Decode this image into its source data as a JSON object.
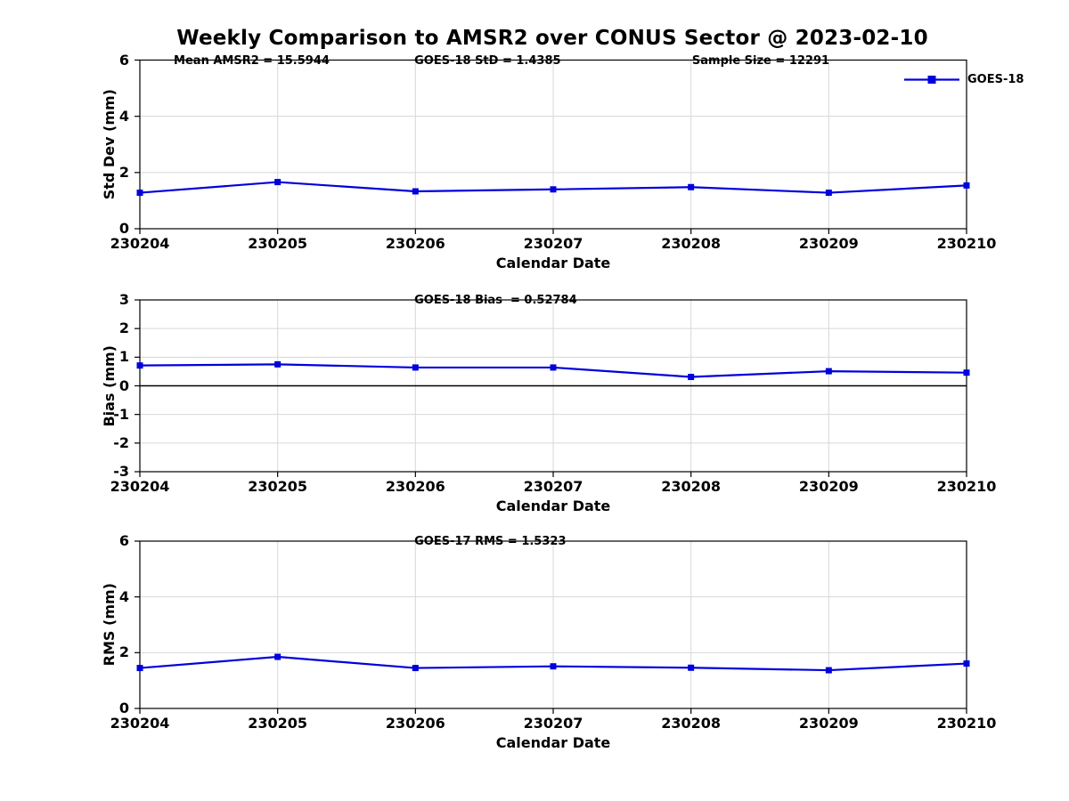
{
  "figure": {
    "title": "Weekly Comparison to AMSR2 over CONUS Sector @ 2023-02-10",
    "legend": {
      "label": "GOES-18"
    }
  },
  "colors": {
    "series": "#0000DD",
    "grid": "#D7D7D7",
    "axis": "#000000",
    "zero_line": "#000000",
    "background": "#FFFFFF"
  },
  "x_axis": {
    "label": "Calendar Date",
    "categories": [
      "230204",
      "230205",
      "230206",
      "230207",
      "230208",
      "230209",
      "230210"
    ]
  },
  "chart_data": [
    {
      "type": "line",
      "annotations": [
        "Mean AMSR2 = 15.5944",
        "GOES-18 StD = 1.4385",
        "Sample Size = 12291"
      ],
      "ylabel": "Std Dev (mm)",
      "xlabel": "Calendar Date",
      "ylim": [
        0,
        6
      ],
      "yticks": [
        0,
        2,
        4,
        6
      ],
      "grid": true,
      "legend_position": "upper right",
      "categories": [
        "230204",
        "230205",
        "230206",
        "230207",
        "230208",
        "230209",
        "230210"
      ],
      "series": [
        {
          "name": "GOES-18",
          "values": [
            1.28,
            1.66,
            1.33,
            1.4,
            1.48,
            1.28,
            1.54
          ]
        }
      ]
    },
    {
      "type": "line",
      "annotations": [
        "GOES-18 Bias  = 0.52784"
      ],
      "ylabel": "Bias (mm)",
      "xlabel": "Calendar Date",
      "ylim": [
        -3,
        3
      ],
      "yticks": [
        3,
        2,
        1,
        0,
        -1,
        -2,
        -3
      ],
      "zero_line": true,
      "grid": true,
      "categories": [
        "230204",
        "230205",
        "230206",
        "230207",
        "230208",
        "230209",
        "230210"
      ],
      "series": [
        {
          "name": "GOES-18",
          "values": [
            0.71,
            0.75,
            0.64,
            0.64,
            0.31,
            0.51,
            0.46
          ]
        }
      ]
    },
    {
      "type": "line",
      "annotations": [
        "GOES-17 RMS = 1.5323"
      ],
      "ylabel": "RMS (mm)",
      "xlabel": "Calendar Date",
      "ylim": [
        0,
        6
      ],
      "yticks": [
        0,
        2,
        4,
        6
      ],
      "grid": true,
      "categories": [
        "230204",
        "230205",
        "230206",
        "230207",
        "230208",
        "230209",
        "230210"
      ],
      "series": [
        {
          "name": "GOES-18",
          "values": [
            1.45,
            1.85,
            1.45,
            1.51,
            1.46,
            1.37,
            1.61
          ]
        }
      ]
    }
  ]
}
